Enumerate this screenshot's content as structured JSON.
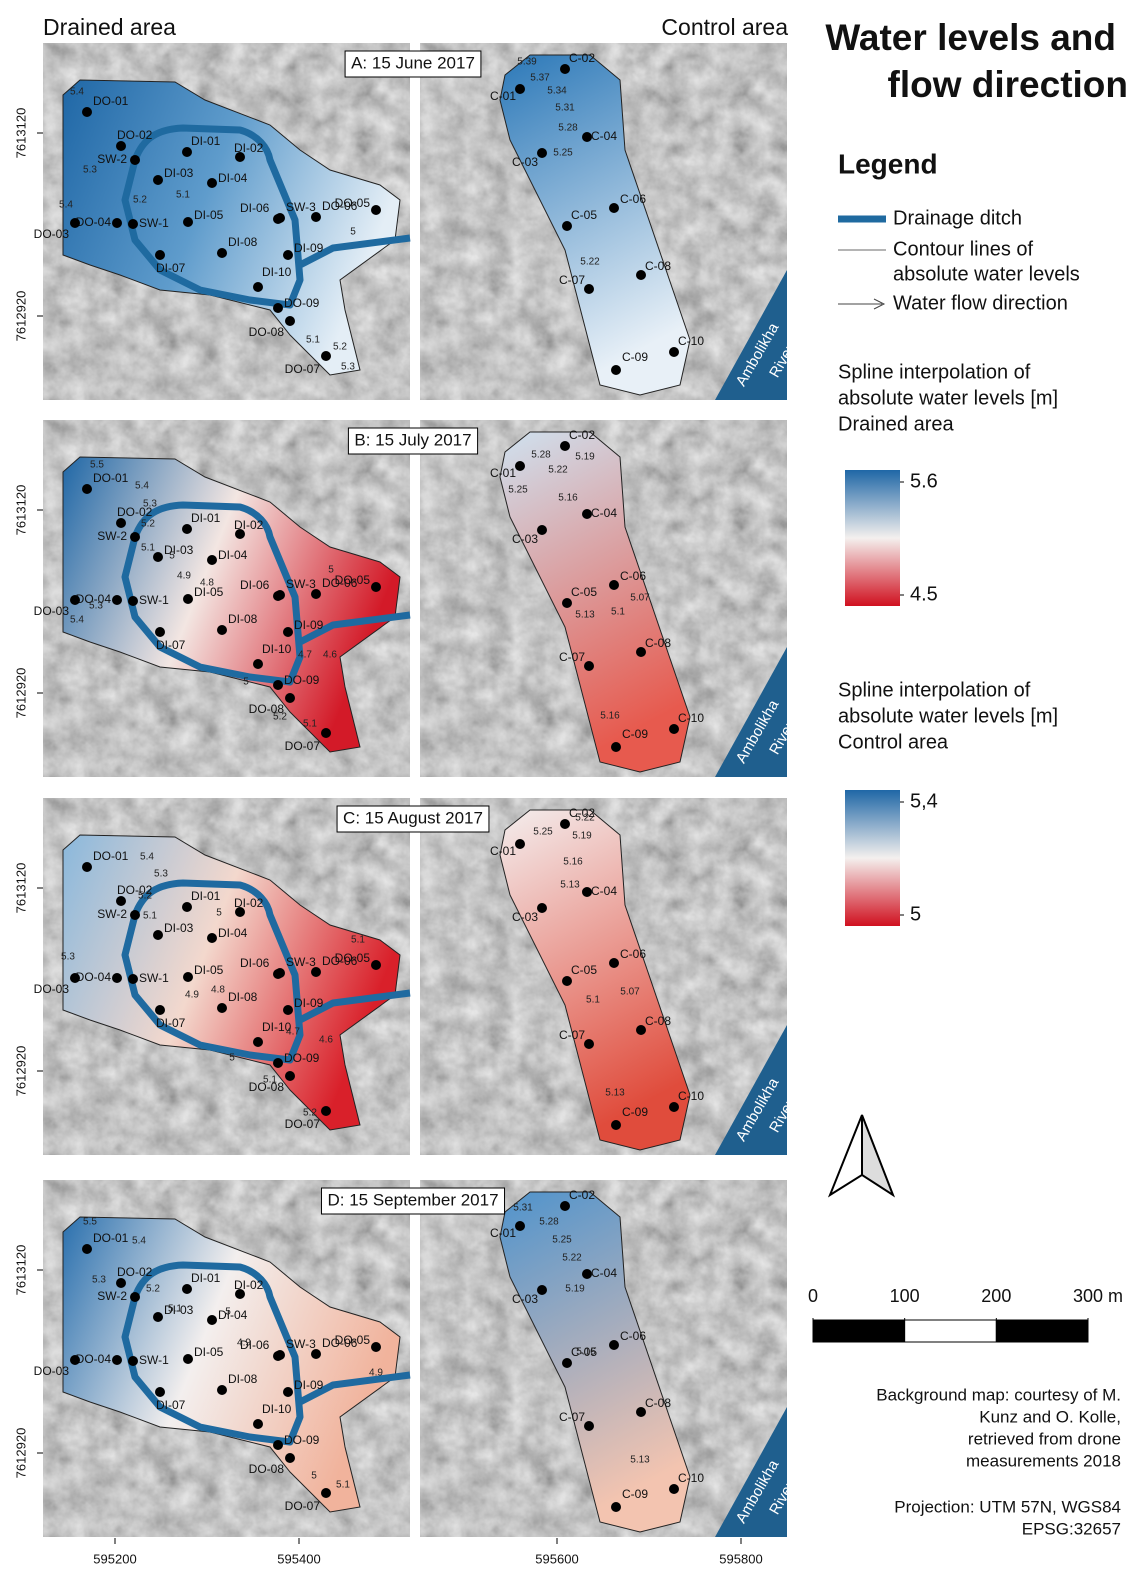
{
  "title": [
    "Water levels and",
    "flow direction"
  ],
  "area_headers": [
    "Drained area",
    "Control area"
  ],
  "panels": [
    {
      "label": "A: 15 June 2017",
      "drained_contours": [
        "5.4",
        "5.3",
        "5.2",
        "5.1",
        "5.4",
        "5",
        "5.1",
        "5.2",
        "5.3"
      ],
      "control_contours": [
        "5.39",
        "5.37",
        "5.34",
        "5.31",
        "5.28",
        "5.25",
        "5.22"
      ]
    },
    {
      "label": "B: 15 July 2017",
      "drained_contours": [
        "5.5",
        "5.4",
        "5.3",
        "5.2",
        "5.1",
        "5",
        "4.9",
        "4.8",
        "5.3",
        "5.4",
        "5",
        "4.7",
        "4.6",
        "5",
        "5.2",
        "5.1"
      ],
      "control_contours": [
        "5.28",
        "5.25",
        "5.22",
        "5.19",
        "5.16",
        "5.13",
        "5.1",
        "5.07",
        "5.16"
      ]
    },
    {
      "label": "C: 15 August 2017",
      "drained_contours": [
        "5.4",
        "5.3",
        "5.2",
        "5.1",
        "5",
        "5.3",
        "4.9",
        "4.8",
        "4.7",
        "4.6",
        "5",
        "5.1",
        "5.2",
        "5.1"
      ],
      "control_contours": [
        "5.25",
        "5.22",
        "5.19",
        "5.16",
        "5.13",
        "5.1",
        "5.07",
        "5.13"
      ]
    },
    {
      "label": "D: 15 September 2017",
      "drained_contours": [
        "5.5",
        "5.4",
        "5.3",
        "5.2",
        "5.1",
        "5",
        "4.9",
        "4.9",
        "5",
        "5.1"
      ],
      "control_contours": [
        "5.31",
        "5.28",
        "5.25",
        "5.22",
        "5.19",
        "5.16",
        "5.13"
      ]
    }
  ],
  "drained_stations": [
    "DO-01",
    "DO-02",
    "SW-2",
    "DI-01",
    "DI-02",
    "DI-03",
    "DI-04",
    "DO-04",
    "DO-03",
    "SW-1",
    "DI-05",
    "DI-06",
    "SW-3",
    "DO-06",
    "DO-05",
    "DI-08",
    "DI-09",
    "DI-07",
    "DI-10",
    "DO-09",
    "DO-08",
    "DO-07"
  ],
  "control_stations": [
    "C-01",
    "C-02",
    "C-03",
    "C-04",
    "C-05",
    "C-06",
    "C-07",
    "C-08",
    "C-09",
    "C-10"
  ],
  "river": [
    "Ambolikha",
    "River"
  ],
  "axes": {
    "yticks": [
      7613120,
      7612920
    ],
    "xticks": [
      595200,
      595400,
      595600,
      595800
    ]
  },
  "legend": {
    "title": "Legend",
    "items": [
      [
        "Drainage ditch"
      ],
      [
        "Contour lines of",
        "absolute water levels"
      ],
      [
        "Water flow direction"
      ]
    ]
  },
  "colorbars": [
    {
      "title": [
        "Spline interpolation of",
        "absolute water levels [m]",
        "Drained area"
      ],
      "max": 5.6,
      "min": 4.5
    },
    {
      "title": [
        "Spline interpolation of",
        "absolute water levels [m]",
        "Control area"
      ],
      "max": {
        "value": 5.4,
        "label": "5,4"
      },
      "min": 5
    }
  ],
  "scale_bar": {
    "ticks": [
      0,
      100,
      200,
      {
        "value": 300,
        "label": "300 m"
      }
    ]
  },
  "credits": [
    "Background map: courtesy of M.",
    "Kunz and O. Kolle,",
    "retrieved from drone",
    "measurements 2018"
  ],
  "projection": [
    "Projection: UTM 57N, WGS84",
    "EPSG:32657"
  ]
}
